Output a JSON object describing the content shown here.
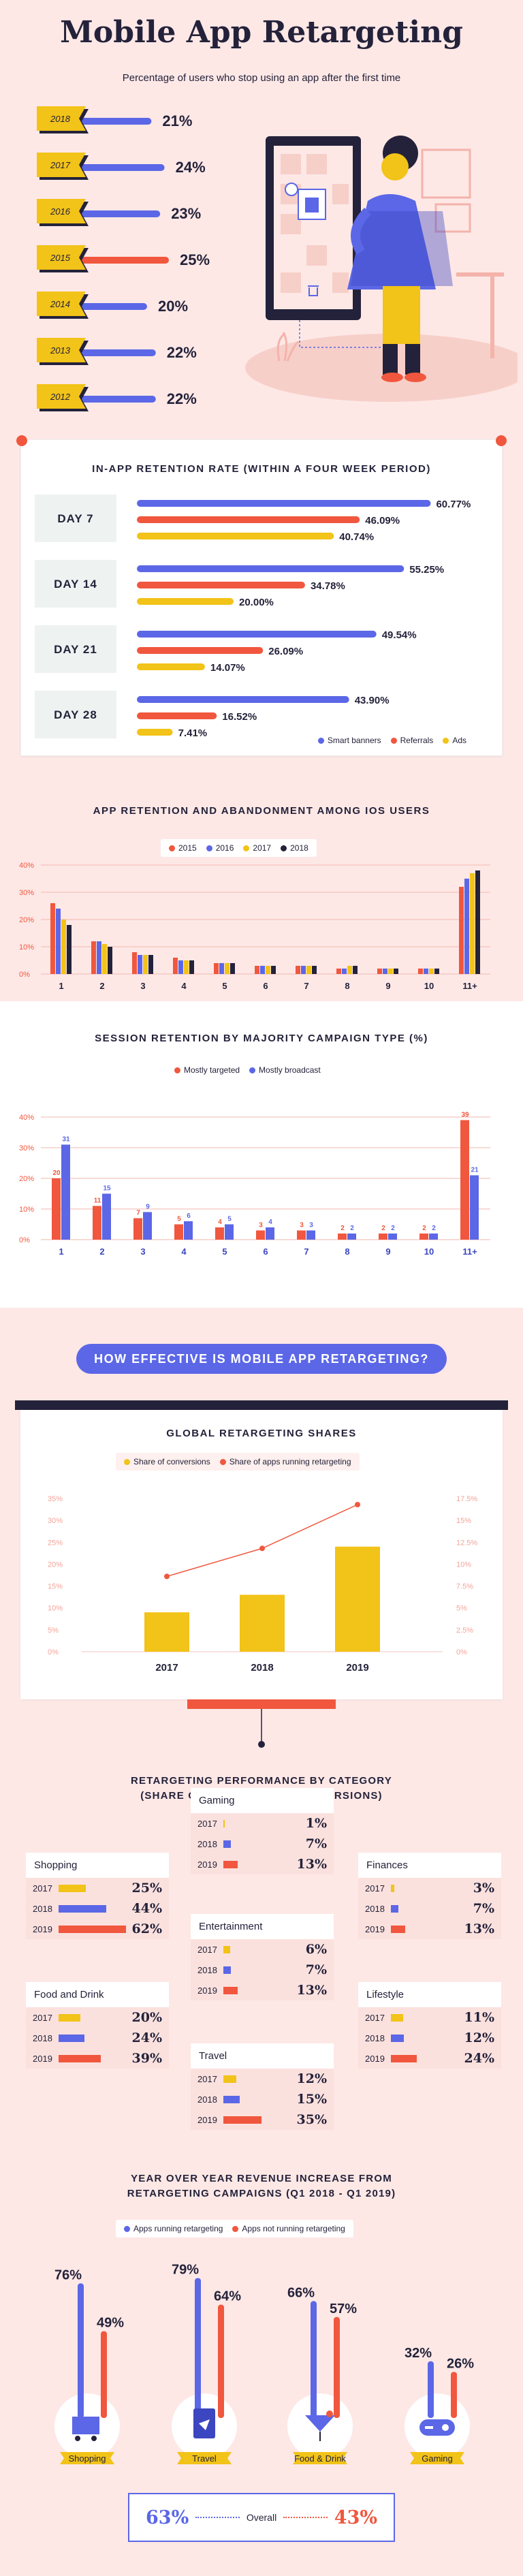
{
  "header": {
    "title": "Mobile App Retargeting",
    "subtitle": "Percentage of users who stop using an app after the first time"
  },
  "colors": {
    "blue": "#5b67e6",
    "red": "#f0573e",
    "yellow": "#f2c318",
    "black": "#24223a",
    "pink": "#fde8e6"
  },
  "chart_data": [
    {
      "type": "bar",
      "id": "stop-using",
      "categories": [
        "2018",
        "2017",
        "2016",
        "2015",
        "2014",
        "2013",
        "2012"
      ],
      "values": [
        21,
        24,
        23,
        25,
        20,
        22,
        22
      ],
      "labels": [
        "21%",
        "24%",
        "23%",
        "25%",
        "20%",
        "22%",
        "22%"
      ]
    },
    {
      "type": "bar",
      "id": "retention-week",
      "title": "IN-APP RETENTION RATE (WITHIN A FOUR WEEK PERIOD)",
      "categories": [
        "DAY 7",
        "DAY 14",
        "DAY 21",
        "DAY 28"
      ],
      "series": [
        {
          "name": "Smart banners",
          "values": [
            60.77,
            55.25,
            49.54,
            43.9
          ],
          "labels": [
            "60.77%",
            "55.25%",
            "49.54%",
            "43.90%"
          ]
        },
        {
          "name": "Referrals",
          "values": [
            46.09,
            34.78,
            26.09,
            16.52
          ],
          "labels": [
            "46.09%",
            "34.78%",
            "26.09%",
            "16.52%"
          ]
        },
        {
          "name": "Ads",
          "values": [
            40.74,
            20.0,
            14.07,
            7.41
          ],
          "labels": [
            "40.74%",
            "20.00%",
            "14.07%",
            "7.41%"
          ]
        }
      ]
    },
    {
      "type": "bar",
      "id": "ios-retention",
      "title": "APP RETENTION AND ABANDONMENT AMONG IOS USERS",
      "categories": [
        "1",
        "2",
        "3",
        "4",
        "5",
        "6",
        "7",
        "8",
        "9",
        "10",
        "11+"
      ],
      "yticks": [
        "0%",
        "10%",
        "20%",
        "30%",
        "40%"
      ],
      "ylim": [
        0,
        40
      ],
      "series": [
        {
          "name": "2015",
          "values": [
            26,
            12,
            8,
            6,
            4,
            3,
            3,
            2,
            2,
            2,
            32
          ]
        },
        {
          "name": "2016",
          "values": [
            24,
            12,
            7,
            5,
            4,
            3,
            3,
            2,
            2,
            2,
            35
          ]
        },
        {
          "name": "2017",
          "values": [
            20,
            11,
            7,
            5,
            4,
            3,
            3,
            3,
            2,
            2,
            37
          ]
        },
        {
          "name": "2018",
          "values": [
            18,
            10,
            7,
            5,
            4,
            3,
            3,
            3,
            2,
            2,
            38
          ]
        }
      ]
    },
    {
      "type": "bar",
      "id": "session-retention",
      "title": "SESSION RETENTION BY MAJORITY CAMPAIGN TYPE (%)",
      "categories": [
        "1",
        "2",
        "3",
        "4",
        "5",
        "6",
        "7",
        "8",
        "9",
        "10",
        "11+"
      ],
      "yticks": [
        "0%",
        "10%",
        "20%",
        "30%",
        "40%"
      ],
      "ylim": [
        0,
        40
      ],
      "series": [
        {
          "name": "Mostly targeted",
          "values": [
            20,
            11,
            7,
            5,
            4,
            3,
            3,
            2,
            2,
            2,
            39
          ]
        },
        {
          "name": "Mostly broadcast",
          "values": [
            31,
            15,
            9,
            6,
            5,
            4,
            3,
            2,
            2,
            2,
            21
          ]
        }
      ]
    },
    {
      "type": "bar",
      "id": "global-shares",
      "title": "GLOBAL RETARGETING SHARES",
      "categories": [
        "2017",
        "2018",
        "2019"
      ],
      "yticks_left": [
        "0%",
        "5%",
        "10%",
        "15%",
        "20%",
        "25%",
        "30%",
        "35%"
      ],
      "yticks_right": [
        "0%",
        "2.5%",
        "5%",
        "7.5%",
        "10%",
        "12.5%",
        "15%",
        "17.5%"
      ],
      "ylim_left": [
        0,
        35
      ],
      "ylim_right": [
        0,
        17.5
      ],
      "series": [
        {
          "name": "Share of conversions",
          "values": [
            9,
            13,
            24
          ]
        },
        {
          "name": "Share of apps running retargeting",
          "values": [
            8.6,
            11.8,
            16.8
          ]
        }
      ]
    },
    {
      "type": "bar",
      "id": "yoy-revenue",
      "title": "YEAR OVER YEAR REVENUE INCREASE FROM RETARGETING CAMPAIGNS (Q1 2018 - Q1 2019)",
      "categories": [
        "Shopping",
        "Travel",
        "Food & Drink",
        "Gaming"
      ],
      "series": [
        {
          "name": "Apps running retargeting",
          "values": [
            76,
            79,
            66,
            32
          ],
          "labels": [
            "76%",
            "79%",
            "66%",
            "32%"
          ]
        },
        {
          "name": "Apps not running retargeting",
          "values": [
            49,
            64,
            57,
            26
          ],
          "labels": [
            "49%",
            "64%",
            "57%",
            "26%"
          ]
        }
      ]
    }
  ],
  "retention": {
    "title": "IN-APP RETENTION RATE (WITHIN A FOUR WEEK PERIOD)",
    "legend": [
      "Smart banners",
      "Referrals",
      "Ads"
    ]
  },
  "ios": {
    "title": "APP RETENTION AND ABANDONMENT AMONG IOS USERS",
    "legend": [
      "2015",
      "2016",
      "2017",
      "2018"
    ]
  },
  "session": {
    "title": "SESSION RETENTION BY MAJORITY CAMPAIGN TYPE (%)",
    "legend": [
      "Mostly targeted",
      "Mostly broadcast"
    ]
  },
  "effective": {
    "banner": "HOW EFFECTIVE IS MOBILE APP RETARGETING?"
  },
  "global": {
    "title": "GLOBAL RETARGETING SHARES",
    "legend": [
      "Share of conversions",
      "Share of apps running retargeting"
    ]
  },
  "category": {
    "title_line1": "RETARGETING PERFORMANCE BY CATEGORY",
    "title_line2": "(SHARE OF RETARGETING CONVERSIONS)",
    "cards": [
      {
        "name": "Gaming",
        "rows": [
          {
            "year": "2017",
            "value": 1,
            "label": "1%"
          },
          {
            "year": "2018",
            "value": 7,
            "label": "7%"
          },
          {
            "year": "2019",
            "value": 13,
            "label": "13%"
          }
        ]
      },
      {
        "name": "Shopping",
        "rows": [
          {
            "year": "2017",
            "value": 25,
            "label": "25%"
          },
          {
            "year": "2018",
            "value": 44,
            "label": "44%"
          },
          {
            "year": "2019",
            "value": 62,
            "label": "62%"
          }
        ]
      },
      {
        "name": "Finances",
        "rows": [
          {
            "year": "2017",
            "value": 3,
            "label": "3%"
          },
          {
            "year": "2018",
            "value": 7,
            "label": "7%"
          },
          {
            "year": "2019",
            "value": 13,
            "label": "13%"
          }
        ]
      },
      {
        "name": "Entertainment",
        "rows": [
          {
            "year": "2017",
            "value": 6,
            "label": "6%"
          },
          {
            "year": "2018",
            "value": 7,
            "label": "7%"
          },
          {
            "year": "2019",
            "value": 13,
            "label": "13%"
          }
        ]
      },
      {
        "name": "Food and Drink",
        "rows": [
          {
            "year": "2017",
            "value": 20,
            "label": "20%"
          },
          {
            "year": "2018",
            "value": 24,
            "label": "24%"
          },
          {
            "year": "2019",
            "value": 39,
            "label": "39%"
          }
        ]
      },
      {
        "name": "Lifestyle",
        "rows": [
          {
            "year": "2017",
            "value": 11,
            "label": "11%"
          },
          {
            "year": "2018",
            "value": 12,
            "label": "12%"
          },
          {
            "year": "2019",
            "value": 24,
            "label": "24%"
          }
        ]
      },
      {
        "name": "Travel",
        "rows": [
          {
            "year": "2017",
            "value": 12,
            "label": "12%"
          },
          {
            "year": "2018",
            "value": 15,
            "label": "15%"
          },
          {
            "year": "2019",
            "value": 35,
            "label": "35%"
          }
        ]
      }
    ]
  },
  "yoy": {
    "title_line1": "YEAR OVER YEAR REVENUE INCREASE FROM",
    "title_line2": "RETARGETING CAMPAIGNS (Q1 2018 - Q1 2019)",
    "legend": [
      "Apps running retargeting",
      "Apps not running retargeting"
    ],
    "overall": {
      "running": "63%",
      "label": "Overall",
      "not_running": "43%"
    }
  }
}
